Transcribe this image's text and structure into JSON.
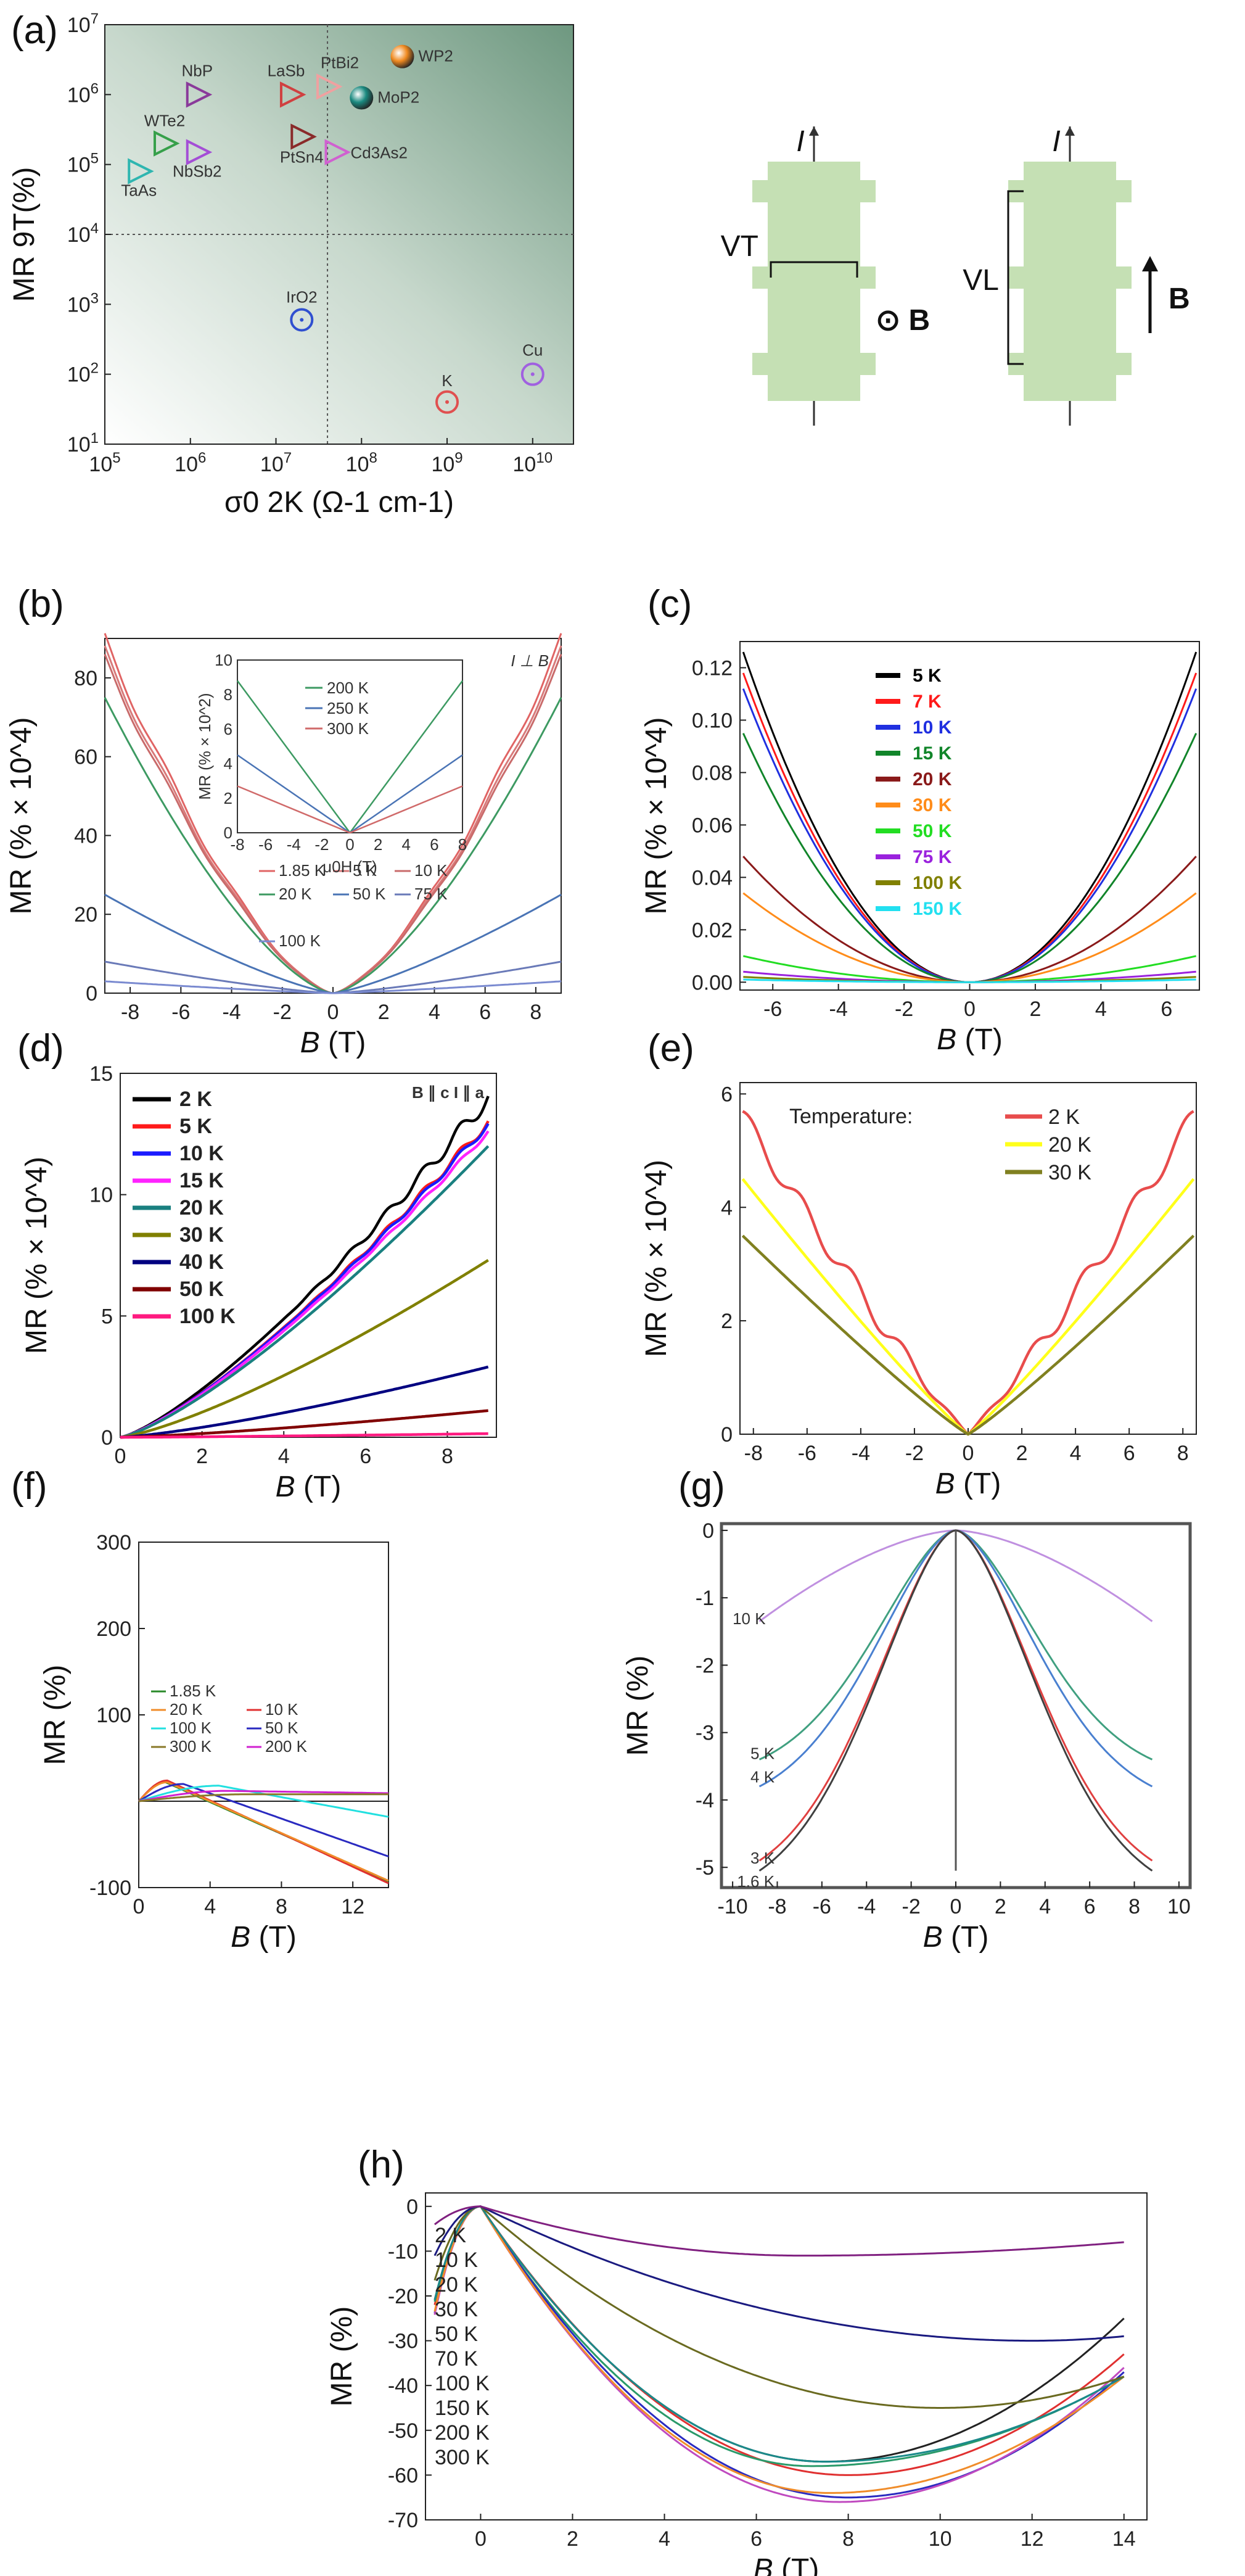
{
  "figure": {
    "panel_labels": [
      "(a)",
      "(b)",
      "(c)",
      "(d)",
      "(e)",
      "(f)",
      "(g)",
      "(h)"
    ]
  },
  "chart_data": [
    {
      "id": "a",
      "type": "scatter",
      "label": "(a)",
      "xlabel": "σ0 2K (Ω-1 cm-1)",
      "ylabel": "MR 9T(%)",
      "xscale": "log",
      "yscale": "log",
      "xlim": [
        100000.0,
        30000000000.0
      ],
      "ylim": [
        10,
        10000000.0
      ],
      "xticks": [
        "10^5",
        "10^6",
        "10^7",
        "10^8",
        "10^9",
        "10^10"
      ],
      "yticks": [
        "10^1",
        "10^2",
        "10^3",
        "10^4",
        "10^5",
        "10^6",
        "10^7"
      ],
      "points": [
        {
          "name": "TaAs",
          "x": 250000,
          "y": 80000,
          "marker": "triangle",
          "color": "#2fb6b0"
        },
        {
          "name": "WTe2",
          "x": 500000,
          "y": 200000,
          "marker": "triangle",
          "color": "#36a04a"
        },
        {
          "name": "NbP",
          "x": 1200000,
          "y": 1000000,
          "marker": "triangle",
          "color": "#8a3a9a"
        },
        {
          "name": "NbSb2",
          "x": 1200000,
          "y": 150000,
          "marker": "triangle",
          "color": "#a44ed6"
        },
        {
          "name": "LaSb",
          "x": 15000000,
          "y": 1000000,
          "marker": "triangle",
          "color": "#d04040"
        },
        {
          "name": "PtBi2",
          "x": 40000000,
          "y": 1300000,
          "marker": "triangle",
          "color": "#f0a0a0"
        },
        {
          "name": "PtSn4",
          "x": 20000000,
          "y": 250000,
          "marker": "triangle",
          "color": "#8a2a2a"
        },
        {
          "name": "Cd3As2",
          "x": 50000000,
          "y": 150000,
          "marker": "triangle",
          "color": "#d060d0"
        },
        {
          "name": "WP2",
          "x": 300000000,
          "y": 3500000,
          "marker": "sphere",
          "color": "#f08a20"
        },
        {
          "name": "MoP2",
          "x": 100000000,
          "y": 900000,
          "marker": "sphere",
          "color": "#1a8a80"
        },
        {
          "name": "IrO2",
          "x": 20000000,
          "y": 600,
          "marker": "circle",
          "color": "#3050d0"
        },
        {
          "name": "K",
          "x": 1000000000,
          "y": 40,
          "marker": "circle",
          "color": "#e05050"
        },
        {
          "name": "Cu",
          "x": 10000000000,
          "y": 100,
          "marker": "circle",
          "color": "#a060e0"
        }
      ],
      "reference_lines": {
        "y": 10000,
        "x": 40000000
      }
    },
    {
      "id": "b",
      "type": "line",
      "label": "(b)",
      "xlabel": "B (T)",
      "ylabel": "MR (% × 10^4)",
      "xlim": [
        -9,
        9
      ],
      "ylim": [
        0,
        90
      ],
      "xticks": [
        -8,
        -6,
        -4,
        -2,
        0,
        2,
        4,
        6,
        8
      ],
      "yticks": [
        0,
        20,
        40,
        60,
        80
      ],
      "annotation": "I ⊥ B",
      "series": [
        {
          "name": "1.85 K",
          "color": "#e06464",
          "max": 90,
          "pow": 1.5,
          "osc": 1.6
        },
        {
          "name": "5 K",
          "color": "#d87a7a",
          "max": 87,
          "pow": 1.5,
          "osc": 1.4
        },
        {
          "name": "10 K",
          "color": "#c96b6b",
          "max": 85,
          "pow": 1.5,
          "osc": 1.2
        },
        {
          "name": "20 K",
          "color": "#3d9a62",
          "max": 75,
          "pow": 1.5,
          "osc": 0
        },
        {
          "name": "50 K",
          "color": "#4a74b5",
          "max": 25,
          "pow": 1.3,
          "osc": 0
        },
        {
          "name": "75 K",
          "color": "#6a7ab8",
          "max": 8,
          "pow": 1.3,
          "osc": 0
        },
        {
          "name": "100 K",
          "color": "#7a8ad0",
          "max": 3,
          "pow": 1.2,
          "osc": 0
        }
      ],
      "inset": {
        "xlabel": "μ0H (T)",
        "ylabel": "MR (% × 10^2)",
        "xlim": [
          -8,
          8
        ],
        "ylim": [
          0,
          10
        ],
        "xticks": [
          -8,
          -6,
          -4,
          -2,
          0,
          2,
          4,
          6,
          8
        ],
        "yticks": [
          0,
          2,
          4,
          6,
          8,
          10
        ],
        "series": [
          {
            "name": "200 K",
            "color": "#3d9a62",
            "max": 8.8
          },
          {
            "name": "250 K",
            "color": "#4a74b5",
            "max": 4.5
          },
          {
            "name": "300 K",
            "color": "#d06a6a",
            "max": 2.7
          }
        ]
      }
    },
    {
      "id": "c",
      "type": "line",
      "label": "(c)",
      "xlabel": "B (T)",
      "ylabel": "MR (% × 10^4)",
      "xlim": [
        -7,
        7
      ],
      "ylim": [
        -0.003,
        0.13
      ],
      "xticks": [
        -6,
        -4,
        -2,
        0,
        2,
        4,
        6
      ],
      "yticks": [
        0,
        0.02,
        0.04,
        0.06,
        0.08,
        0.1,
        0.12
      ],
      "series": [
        {
          "name": "5 K",
          "color": "#000000",
          "max": 0.126
        },
        {
          "name": "7 K",
          "color": "#ff1a1a",
          "max": 0.118
        },
        {
          "name": "10 K",
          "color": "#2030e0",
          "max": 0.112
        },
        {
          "name": "15 K",
          "color": "#11852a",
          "max": 0.095
        },
        {
          "name": "20 K",
          "color": "#8a1a1a",
          "max": 0.048
        },
        {
          "name": "30 K",
          "color": "#ff8c1a",
          "max": 0.034
        },
        {
          "name": "50 K",
          "color": "#22dd22",
          "max": 0.01
        },
        {
          "name": "75 K",
          "color": "#9a22dd",
          "max": 0.004
        },
        {
          "name": "100 K",
          "color": "#808000",
          "max": 0.002
        },
        {
          "name": "150 K",
          "color": "#22e0f0",
          "max": 0.001
        }
      ]
    },
    {
      "id": "d",
      "type": "line",
      "label": "(d)",
      "xlabel": "B (T)",
      "ylabel": "MR (% × 10^4)",
      "xlim": [
        0,
        9.2
      ],
      "ylim": [
        0,
        15
      ],
      "xticks": [
        0,
        2,
        4,
        6,
        8
      ],
      "yticks": [
        0,
        5,
        10,
        15
      ],
      "annotation": "B ∥ c I ∥ a",
      "series": [
        {
          "name": "2 K",
          "color": "#000000",
          "end": 14.0,
          "osc": 0.35
        },
        {
          "name": "5 K",
          "color": "#ff1a1a",
          "end": 13.0,
          "osc": 0.2
        },
        {
          "name": "10 K",
          "color": "#1a1aff",
          "end": 12.9,
          "osc": 0.15
        },
        {
          "name": "15 K",
          "color": "#ff22ff",
          "end": 12.6,
          "osc": 0.1
        },
        {
          "name": "20 K",
          "color": "#1a8080",
          "end": 12.0,
          "osc": 0
        },
        {
          "name": "30 K",
          "color": "#808000",
          "end": 7.3,
          "osc": 0
        },
        {
          "name": "40 K",
          "color": "#000080",
          "end": 2.9,
          "osc": 0
        },
        {
          "name": "50 K",
          "color": "#800000",
          "end": 1.1,
          "osc": 0
        },
        {
          "name": "100 K",
          "color": "#ff1a80",
          "end": 0.15,
          "osc": 0
        }
      ]
    },
    {
      "id": "e",
      "type": "line",
      "label": "(e)",
      "xlabel": "B (T)",
      "ylabel": "MR (% × 10^4)",
      "xlim": [
        -8.5,
        8.5
      ],
      "ylim": [
        0,
        6.2
      ],
      "xticks": [
        -8,
        -6,
        -4,
        -2,
        0,
        2,
        4,
        6,
        8
      ],
      "yticks": [
        0,
        2,
        4,
        6
      ],
      "legend_title": "Temperature:",
      "series": [
        {
          "name": "2 K",
          "color": "#e84c4c",
          "end": 5.6,
          "osc": 0.18
        },
        {
          "name": "20 K",
          "color": "#ffff1a",
          "end": 4.5,
          "osc": 0
        },
        {
          "name": "30 K",
          "color": "#808020",
          "end": 3.5,
          "osc": 0
        }
      ]
    },
    {
      "id": "f",
      "type": "line",
      "label": "(f)",
      "xlabel": "B (T)",
      "ylabel": "MR (%)",
      "xlim": [
        0,
        14
      ],
      "ylim": [
        -100,
        300
      ],
      "xticks": [
        0,
        4,
        8,
        12
      ],
      "yticks": [
        -100,
        100,
        200,
        300
      ],
      "series": [
        {
          "name": "1.85 K",
          "color": "#2a8a2a"
        },
        {
          "name": "10 K",
          "color": "#e03030"
        },
        {
          "name": "20 K",
          "color": "#f08c2a"
        },
        {
          "name": "50 K",
          "color": "#2a2ac0"
        },
        {
          "name": "100 K",
          "color": "#22e0e0"
        },
        {
          "name": "200 K",
          "color": "#d022d0"
        },
        {
          "name": "300 K",
          "color": "#8a7a2a"
        }
      ]
    },
    {
      "id": "g",
      "type": "line",
      "label": "(g)",
      "xlabel": "B (T)",
      "ylabel": "MR (%)",
      "xlim": [
        -10.5,
        10.5
      ],
      "ylim": [
        -5.3,
        0.1
      ],
      "xticks": [
        -10,
        -8,
        -6,
        -4,
        -2,
        0,
        2,
        4,
        6,
        8,
        10
      ],
      "yticks": [
        0,
        -1,
        -2,
        -3,
        -4,
        -5
      ],
      "series": [
        {
          "name": "10 K",
          "color": "#c090e0",
          "min": -1.35
        },
        {
          "name": "5 K",
          "color": "#40a080",
          "min": -3.4
        },
        {
          "name": "4 K",
          "color": "#4a80d0",
          "min": -3.8
        },
        {
          "name": "3 K",
          "color": "#e04040",
          "min": -4.9
        },
        {
          "name": "1.6 K",
          "color": "#404040",
          "min": -5.05
        }
      ]
    },
    {
      "id": "h",
      "type": "line",
      "label": "(h)",
      "xlabel": "B (T)",
      "ylabel": "MR (%)",
      "xlim": [
        -1.2,
        14.5
      ],
      "ylim": [
        -70,
        3
      ],
      "xticks": [
        0,
        2,
        4,
        6,
        8,
        10,
        12,
        14
      ],
      "yticks": [
        0,
        -10,
        -20,
        -30,
        -40,
        -50,
        -60,
        -70
      ],
      "series": [
        {
          "name": "2 K",
          "color": "#222222",
          "min": -57,
          "bmin": 7.5,
          "end": -25
        },
        {
          "name": "10 K",
          "color": "#e03030",
          "min": -60,
          "bmin": 8.0,
          "end": -33
        },
        {
          "name": "20 K",
          "color": "#2a9a6a",
          "min": -58,
          "bmin": 7.2,
          "end": -38
        },
        {
          "name": "30 K",
          "color": "#2a2ac0",
          "min": -65,
          "bmin": 8.0,
          "end": -37
        },
        {
          "name": "50 K",
          "color": "#c04ac0",
          "min": -66,
          "bmin": 7.8,
          "end": -36
        },
        {
          "name": "70 K",
          "color": "#f08c2a",
          "min": -64,
          "bmin": 7.6,
          "end": -38
        },
        {
          "name": "100 K",
          "color": "#1a8a8a",
          "min": -57,
          "bmin": 7.5,
          "end": -38
        },
        {
          "name": "150 K",
          "color": "#6a6a20",
          "min": -45,
          "bmin": 10.0,
          "end": -38
        },
        {
          "name": "200 K",
          "color": "#1a1a80",
          "min": -30,
          "bmin": 12.0,
          "end": -29
        },
        {
          "name": "300 K",
          "color": "#802080",
          "min": -11,
          "bmin": 7.0,
          "end": -8
        }
      ]
    }
  ],
  "schematic": {
    "current": "I",
    "vt": "VT",
    "vl": "VL",
    "field": "B",
    "field_dot": "⊙ B"
  }
}
